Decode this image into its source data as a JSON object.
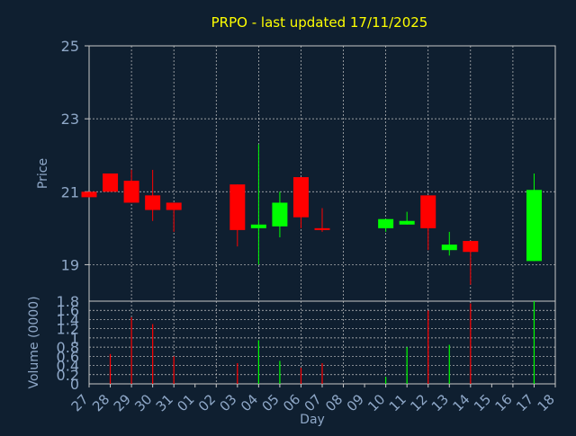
{
  "colors": {
    "background": "#0f1f30",
    "title": "#ffff00",
    "axis_text": "#8fa8c8",
    "frame": "#c8c8c8",
    "grid": "#c8c8c8",
    "up": "#00ff00",
    "down": "#ff0000"
  },
  "chart_data": [
    {
      "type": "candlestick",
      "title": "PRPO - last updated 17/11/2025",
      "ylabel": "Price",
      "ylim": [
        18,
        25
      ],
      "yticks": [
        19,
        21,
        23,
        25
      ],
      "grid": true,
      "x": [
        "27",
        "28",
        "29",
        "30",
        "31",
        "01",
        "02",
        "03",
        "04",
        "05",
        "06",
        "07",
        "08",
        "09",
        "10",
        "11",
        "12",
        "13",
        "14",
        "15",
        "16",
        "17",
        "18"
      ],
      "candles": [
        {
          "x": "27",
          "open": 21.0,
          "close": 20.85,
          "high": 21.0,
          "low": 20.85
        },
        {
          "x": "28",
          "open": 21.5,
          "close": 21.0,
          "high": 21.5,
          "low": 21.0
        },
        {
          "x": "29",
          "open": 21.3,
          "close": 20.7,
          "high": 21.6,
          "low": 20.7
        },
        {
          "x": "30",
          "open": 20.9,
          "close": 20.5,
          "high": 21.6,
          "low": 20.2
        },
        {
          "x": "31",
          "open": 20.7,
          "close": 20.5,
          "high": 20.7,
          "low": 19.9
        },
        {
          "x": "03",
          "open": 21.2,
          "close": 19.95,
          "high": 21.2,
          "low": 19.5
        },
        {
          "x": "04",
          "open": 20.0,
          "close": 20.1,
          "high": 22.3,
          "low": 19.0
        },
        {
          "x": "05",
          "open": 20.05,
          "close": 20.7,
          "high": 21.0,
          "low": 19.75
        },
        {
          "x": "06",
          "open": 21.4,
          "close": 20.3,
          "high": 21.4,
          "low": 20.0
        },
        {
          "x": "07",
          "open": 20.0,
          "close": 19.95,
          "high": 20.55,
          "low": 19.9
        },
        {
          "x": "10",
          "open": 20.0,
          "close": 20.25,
          "high": 20.25,
          "low": 19.9
        },
        {
          "x": "11",
          "open": 20.1,
          "close": 20.2,
          "high": 20.45,
          "low": 20.1
        },
        {
          "x": "12",
          "open": 20.9,
          "close": 20.0,
          "high": 20.9,
          "low": 19.4
        },
        {
          "x": "13",
          "open": 19.4,
          "close": 19.55,
          "high": 19.9,
          "low": 19.25
        },
        {
          "x": "14",
          "open": 19.65,
          "close": 19.35,
          "high": 19.65,
          "low": 18.45
        },
        {
          "x": "17",
          "open": 19.1,
          "close": 21.05,
          "high": 21.5,
          "low": 19.1
        }
      ]
    },
    {
      "type": "bar",
      "ylabel": "Volume (0000)",
      "xlabel": "Day",
      "ylim": [
        0,
        1.8
      ],
      "yticks": [
        "0",
        "0.2",
        "0.4",
        "0.6",
        "0.8",
        "1",
        "1.2",
        "1.4",
        "1.6",
        "1.8"
      ],
      "grid": true,
      "bars": [
        {
          "x": "28",
          "value": 0.65,
          "direction": "down"
        },
        {
          "x": "29",
          "value": 1.45,
          "direction": "down"
        },
        {
          "x": "30",
          "value": 1.3,
          "direction": "down"
        },
        {
          "x": "31",
          "value": 0.6,
          "direction": "down"
        },
        {
          "x": "03",
          "value": 0.45,
          "direction": "down"
        },
        {
          "x": "04",
          "value": 0.95,
          "direction": "up"
        },
        {
          "x": "05",
          "value": 0.5,
          "direction": "up"
        },
        {
          "x": "06",
          "value": 0.35,
          "direction": "down"
        },
        {
          "x": "07",
          "value": 0.45,
          "direction": "down"
        },
        {
          "x": "10",
          "value": 0.15,
          "direction": "up"
        },
        {
          "x": "11",
          "value": 0.8,
          "direction": "up"
        },
        {
          "x": "12",
          "value": 1.6,
          "direction": "down"
        },
        {
          "x": "13",
          "value": 0.85,
          "direction": "up"
        },
        {
          "x": "14",
          "value": 1.75,
          "direction": "down"
        },
        {
          "x": "17",
          "value": 1.8,
          "direction": "up"
        }
      ]
    }
  ]
}
